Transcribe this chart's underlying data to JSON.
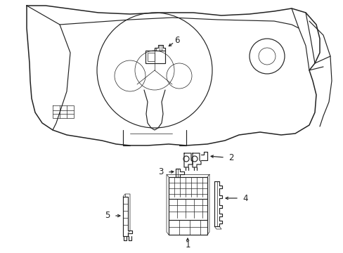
{
  "bg_color": "#ffffff",
  "line_color": "#222222",
  "lw": 0.85,
  "thin": 0.5,
  "thick": 1.1
}
